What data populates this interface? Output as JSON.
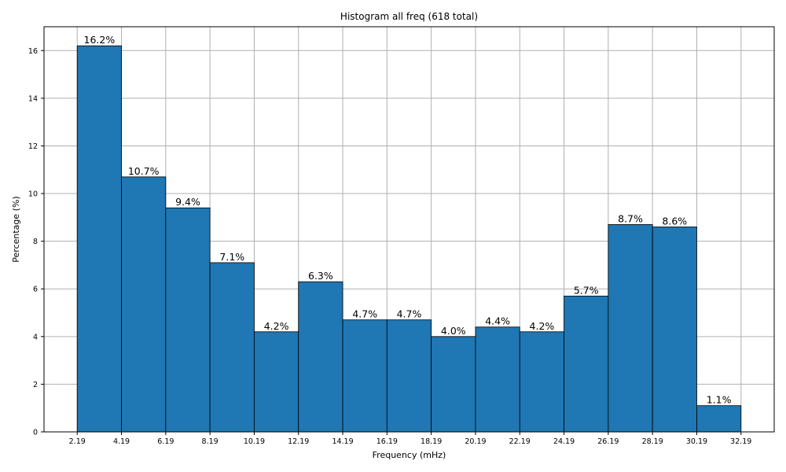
{
  "chart_data": {
    "type": "bar",
    "title": "Histogram all freq (618 total)",
    "xlabel": "Frequency (mHz)",
    "ylabel": "Percentage (%)",
    "bin_edges": [
      "2.19",
      "4.19",
      "6.19",
      "8.19",
      "10.19",
      "12.19",
      "14.19",
      "16.19",
      "18.19",
      "20.19",
      "22.19",
      "24.19",
      "26.19",
      "28.19",
      "30.19",
      "32.19"
    ],
    "values": [
      16.2,
      10.7,
      9.4,
      7.1,
      4.2,
      6.3,
      4.7,
      4.7,
      4.0,
      4.4,
      4.2,
      5.7,
      8.7,
      8.6,
      1.1
    ],
    "value_labels": [
      "16.2%",
      "10.7%",
      "9.4%",
      "7.1%",
      "4.2%",
      "6.3%",
      "4.7%",
      "4.7%",
      "4.0%",
      "4.4%",
      "4.2%",
      "5.7%",
      "8.7%",
      "8.6%",
      "1.1%"
    ],
    "xlim": [
      0.69,
      33.69
    ],
    "ylim": [
      0,
      17
    ],
    "yticks": [
      0,
      2,
      4,
      6,
      8,
      10,
      12,
      14,
      16
    ],
    "grid": true,
    "bar_color": "#1f77b4",
    "edge_color": "#000000",
    "grid_color": "#b0b0b0"
  }
}
